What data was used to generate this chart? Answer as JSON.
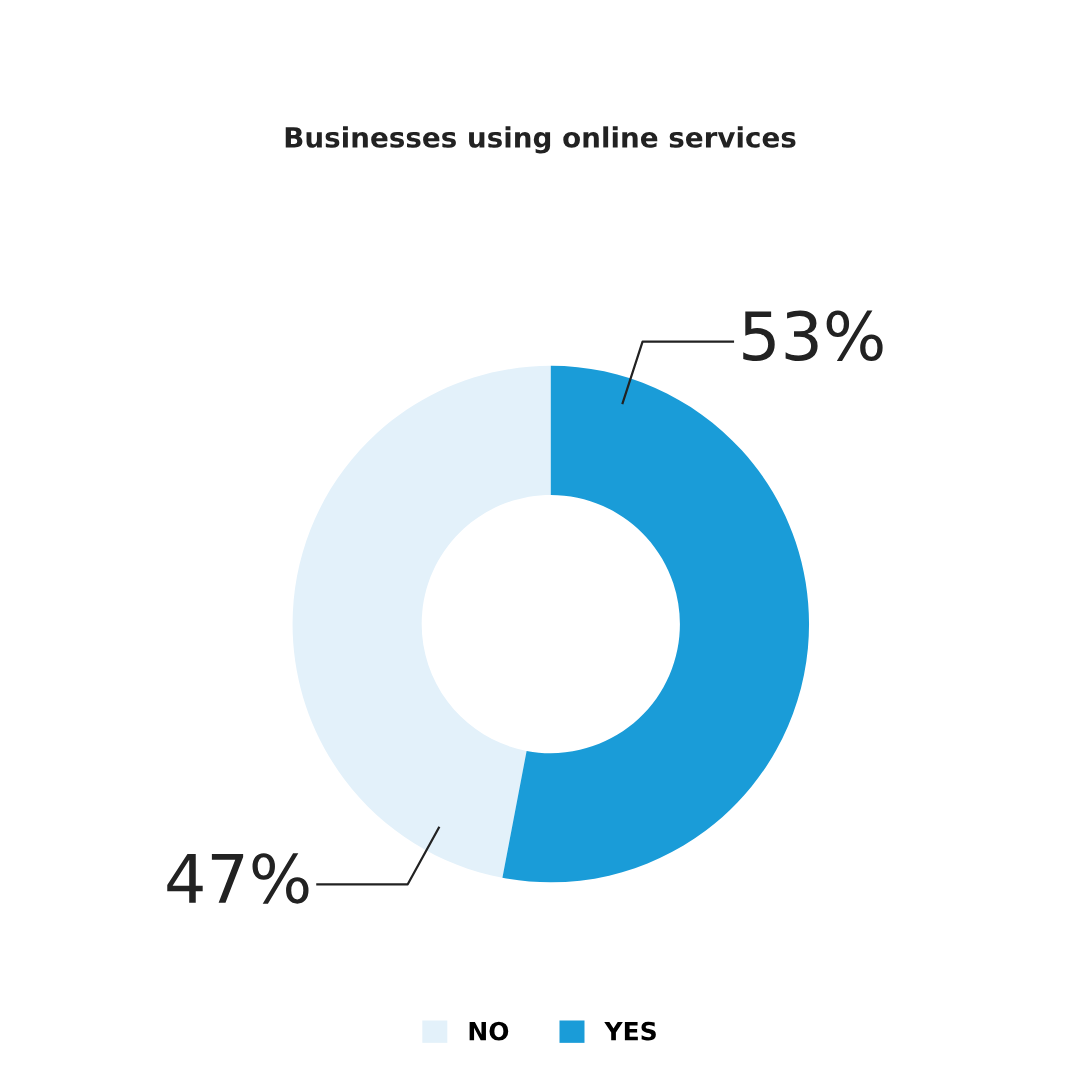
{
  "chart_data": {
    "type": "donut",
    "title": "Businesses using online services",
    "categories": [
      "NO",
      "YES"
    ],
    "values": [
      47,
      53
    ],
    "colors": [
      "#e3f1fa",
      "#1a9cd8"
    ],
    "value_labels": [
      "47%",
      "53%"
    ],
    "legend": "bottom"
  }
}
